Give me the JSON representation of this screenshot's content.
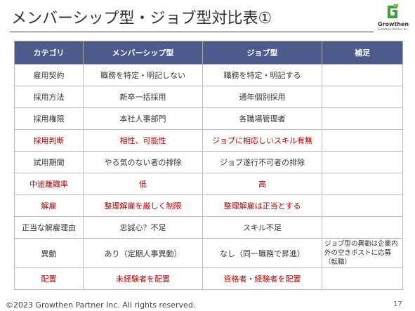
{
  "header": {
    "title": "メンバーシップ型・ジョブ型対比表①"
  },
  "logo": {
    "name": "Growthen",
    "subtitle": "Growthen Partner Inc."
  },
  "table": {
    "highlight_color": "#c00000",
    "columns": [
      "カテゴリ",
      "メンバーシップ型",
      "ジョブ型",
      "補足"
    ],
    "rows": [
      {
        "cells": [
          "雇用契約",
          "職務を特定・明記しない",
          "職務を特定・明記する"
        ]
      },
      {
        "cells": [
          "採用方法",
          "新卒一括採用",
          "通年個別採用"
        ]
      },
      {
        "cells": [
          "採用権限",
          "本社人事部門",
          "各職場管理者"
        ]
      },
      {
        "cells": [
          "採用判断",
          "相性、可能性",
          "ジョブに相応しいスキル有無"
        ],
        "highlight": true
      },
      {
        "cells": [
          "試用期間",
          "やる気のない者の排除",
          "ジョブ遂行不可者の排除"
        ]
      },
      {
        "cells": [
          "中途離職率",
          "低",
          "高"
        ],
        "highlight": true
      },
      {
        "cells": [
          "解雇",
          "整理解雇を厳しく制限",
          "整理解雇は正当とする"
        ],
        "highlight": true
      },
      {
        "cells": [
          "正当な解雇理由",
          "忠誠心？不足",
          "スキル不足"
        ]
      },
      {
        "cells": [
          "異動",
          "あり（定期人事異動）",
          "なし（同一職務で昇進）"
        ],
        "note": "ジョブ型の異動は企業内外の空きポストに応募（転職）"
      },
      {
        "cells": [
          "配置",
          "未経験者を配置",
          "資格者・経験者を配置"
        ],
        "highlight": true
      }
    ]
  },
  "footer": {
    "copyright": "©2023  Growthen Partner Inc. All rights reserved.",
    "page": "17"
  }
}
